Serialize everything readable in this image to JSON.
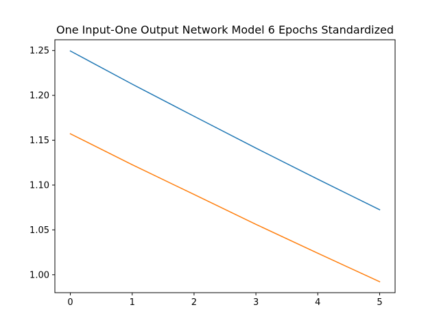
{
  "chart_data": {
    "type": "line",
    "title": "One Input-One Output Network Model 6 Epochs Standardized",
    "xlabel": "",
    "ylabel": "",
    "x": [
      0,
      1,
      2,
      3,
      4,
      5
    ],
    "series": [
      {
        "color": "#1f77b4",
        "values": [
          1.2495,
          1.2125,
          1.1767,
          1.1412,
          1.1065,
          1.0725
        ]
      },
      {
        "color": "#ff7f0e",
        "values": [
          1.1572,
          1.1227,
          1.0895,
          1.0562,
          1.024,
          0.9922
        ]
      }
    ],
    "xlim": [
      -0.25,
      5.25
    ],
    "ylim": [
      0.98,
      1.262
    ],
    "xticks": [
      0,
      1,
      2,
      3,
      4,
      5
    ],
    "xtick_labels": [
      "0",
      "1",
      "2",
      "3",
      "4",
      "5"
    ],
    "yticks": [
      1.0,
      1.05,
      1.1,
      1.15,
      1.2,
      1.25
    ],
    "ytick_labels": [
      "1.00",
      "1.05",
      "1.10",
      "1.15",
      "1.20",
      "1.25"
    ],
    "grid": false,
    "legend": "none"
  }
}
